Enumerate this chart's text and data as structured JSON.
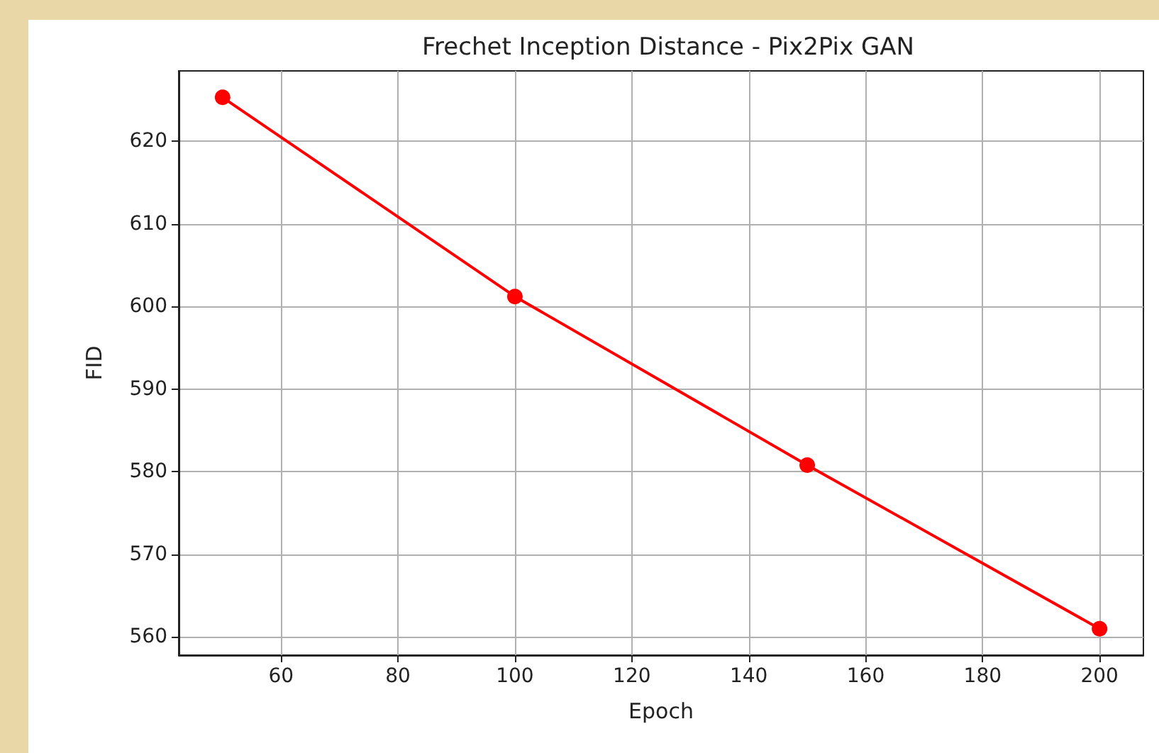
{
  "chart_data": {
    "type": "line",
    "title": "Frechet Inception Distance - Pix2Pix GAN",
    "xlabel": "Epoch",
    "ylabel": "FID",
    "x": [
      50,
      100,
      150,
      200
    ],
    "series": [
      {
        "color": "#ff0000",
        "values": [
          625.3,
          601.2,
          580.8,
          561.0
        ]
      }
    ],
    "marker": "circle",
    "line_style": "solid",
    "grid": true,
    "xlim": [
      42.5,
      207.5
    ],
    "xticks": [
      60,
      80,
      100,
      120,
      140,
      160,
      180,
      200
    ],
    "ylim": [
      557.8,
      628.5
    ],
    "yticks": [
      560,
      570,
      580,
      590,
      600,
      610,
      620
    ]
  }
}
